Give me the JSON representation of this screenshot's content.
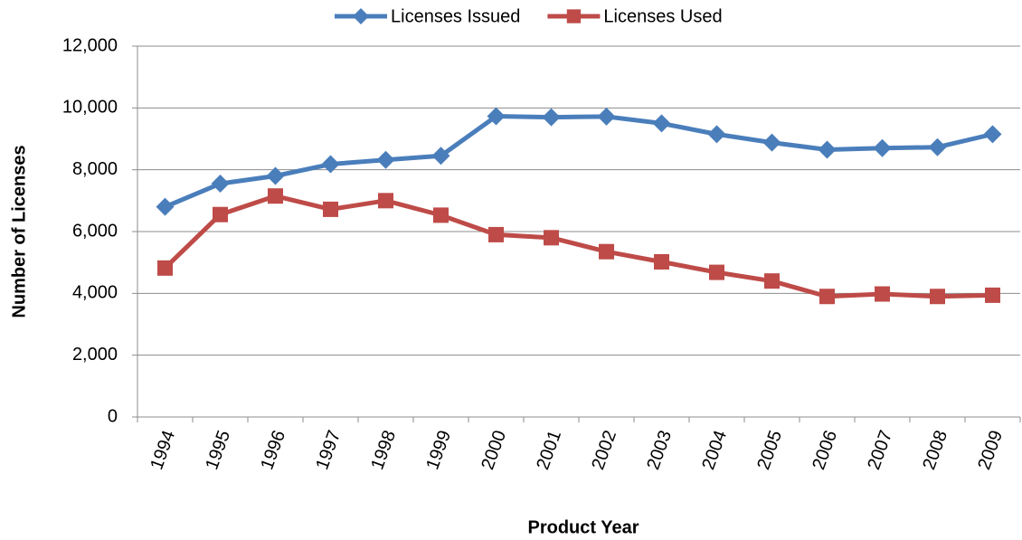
{
  "chart_data": {
    "type": "line",
    "x_label": "Product Year",
    "y_label": "Number of Licenses",
    "categories": [
      "1994",
      "1995",
      "1996",
      "1997",
      "1998",
      "1999",
      "2000",
      "2001",
      "2002",
      "2003",
      "2004",
      "2005",
      "2006",
      "2007",
      "2008",
      "2009"
    ],
    "series": [
      {
        "name": "Licenses Issued",
        "color": "#4a7ebb",
        "marker": "diamond",
        "values": [
          6800,
          7550,
          7800,
          8180,
          8320,
          8450,
          9730,
          9700,
          9720,
          9500,
          9150,
          8880,
          8650,
          8700,
          8730,
          9150
        ]
      },
      {
        "name": "Licenses Used",
        "color": "#be4b48",
        "marker": "square",
        "values": [
          4820,
          6550,
          7150,
          6720,
          7000,
          6530,
          5900,
          5800,
          5350,
          5020,
          4680,
          4400,
          3900,
          3980,
          3900,
          3940
        ]
      }
    ],
    "ylim": [
      0,
      12000
    ],
    "yticks": [
      0,
      {
        "value": 2000,
        "label": "2,000"
      },
      {
        "value": 4000,
        "label": "4,000"
      },
      {
        "value": 6000,
        "label": "6,000"
      },
      {
        "value": 8000,
        "label": "8,000"
      },
      {
        "value": 10000,
        "label": "10,000"
      },
      {
        "value": 12000,
        "label": "12,000"
      }
    ],
    "grid": true,
    "legend": "top"
  }
}
